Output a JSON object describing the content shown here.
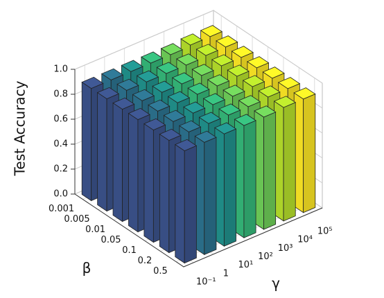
{
  "chart_data": {
    "type": "bar3d",
    "zlabel": "Test Accuracy",
    "ylabel": "β",
    "xlabel": "γ",
    "x_categories": [
      "10⁻¹",
      "1",
      "10¹",
      "10²",
      "10³",
      "10⁴",
      "10⁵"
    ],
    "y_categories": [
      "0.001",
      "0.005",
      "0.01",
      "0.05",
      "0.1",
      "0.2",
      "0.5"
    ],
    "zlim": [
      0,
      1
    ],
    "zticks": [
      {
        "value": 0,
        "label": "0.0"
      },
      0.2,
      0.4,
      0.6,
      0.8,
      {
        "value": 1,
        "label": "1.0"
      }
    ],
    "colors": [
      "#3b528b",
      "#2c728e",
      "#21918c",
      "#35b779",
      "#6ece58",
      "#b5de2b",
      "#fde725"
    ],
    "values": [
      [
        0.9,
        0.9,
        0.9,
        0.9,
        0.9,
        0.91,
        0.91
      ],
      [
        0.9,
        0.9,
        0.9,
        0.9,
        0.9,
        0.91,
        0.91
      ],
      [
        0.9,
        0.9,
        0.9,
        0.9,
        0.9,
        0.91,
        0.91
      ],
      [
        0.9,
        0.9,
        0.9,
        0.9,
        0.9,
        0.91,
        0.91
      ],
      [
        0.9,
        0.9,
        0.9,
        0.9,
        0.9,
        0.91,
        0.91
      ],
      [
        0.9,
        0.9,
        0.9,
        0.9,
        0.9,
        0.91,
        0.91
      ],
      [
        0.9,
        0.9,
        0.9,
        0.9,
        0.9,
        0.91,
        0.91
      ]
    ],
    "grid": true
  }
}
